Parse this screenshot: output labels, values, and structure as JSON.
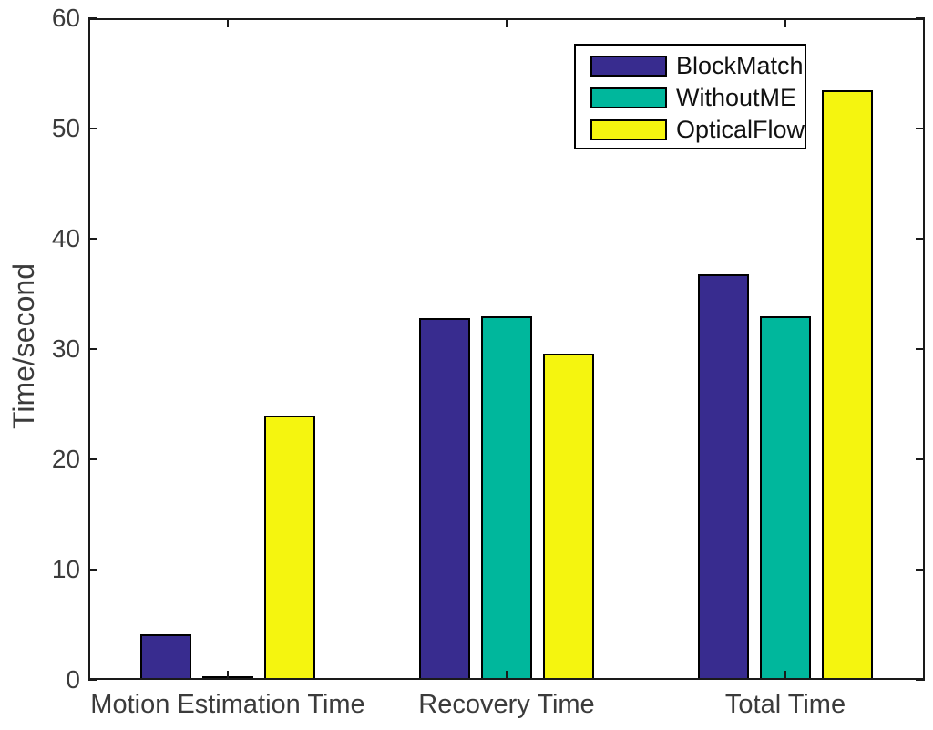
{
  "figure": {
    "background_color": "#FFFFFF",
    "axis_color": "#1A1A1A",
    "text_color": "#3B3B3B",
    "bar_edge_color": "#000000"
  },
  "chart_data": {
    "type": "bar",
    "title": "",
    "xlabel": "",
    "ylabel": "Time/second",
    "categories": [
      "Motion Estimation Time",
      "Recovery Time",
      "Total Time"
    ],
    "series": [
      {
        "name": "BlockMatch",
        "color": "#382C8F",
        "values": [
          4.1,
          32.8,
          36.8
        ]
      },
      {
        "name": "WithoutME",
        "color": "#00B79C",
        "values": [
          0.1,
          33.0,
          33.0
        ]
      },
      {
        "name": "OpticalFlow",
        "color": "#F5F50F",
        "values": [
          24.0,
          29.6,
          53.5
        ]
      }
    ],
    "ylim": [
      0,
      60
    ],
    "yticks": [
      0,
      10,
      20,
      30,
      40,
      50,
      60
    ],
    "grid": false,
    "legend_position": "top-right"
  }
}
